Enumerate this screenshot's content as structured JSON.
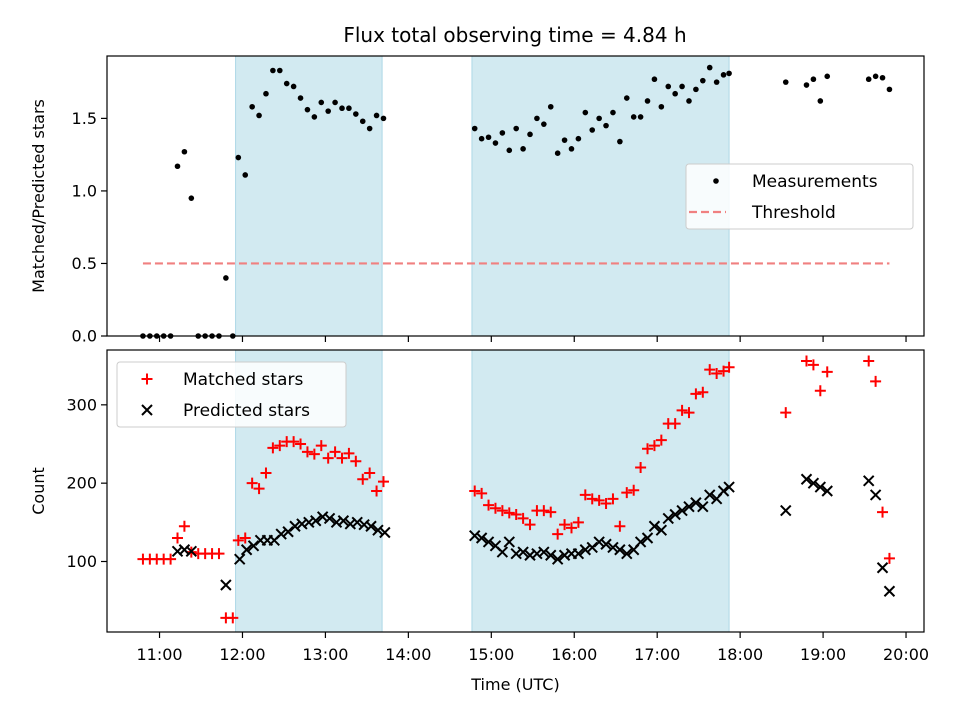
{
  "title": "Flux total observing time = 4.84 h",
  "colors": {
    "measurement": "#000000",
    "threshold": "#f08080",
    "matched": "#ff0000",
    "predicted": "#000000",
    "band": "#add8e6"
  },
  "chart_data": [
    {
      "type": "scatter",
      "panel": "top",
      "ylabel": "Matched/Predicted stars",
      "xlabel": "",
      "xlim": [
        "10:22",
        "20:13"
      ],
      "ylim": [
        0,
        1.93
      ],
      "yticks": [
        0.0,
        0.5,
        1.0,
        1.5
      ],
      "ytick_labels": [
        "0.0",
        "0.5",
        "1.0",
        "1.5"
      ],
      "legend_loc": "center-right",
      "shaded_spans": [
        [
          "11:55",
          "13:41"
        ],
        [
          "14:46",
          "17:52"
        ]
      ],
      "series": [
        {
          "name": "Measurements",
          "marker": "dot",
          "x": [
            "10:48",
            "10:53",
            "10:58",
            "11:03",
            "11:08",
            "11:13",
            "11:18",
            "11:23",
            "11:28",
            "11:33",
            "11:38",
            "11:43",
            "11:48",
            "11:53",
            "11:57",
            "12:02",
            "12:07",
            "12:12",
            "12:17",
            "12:22",
            "12:27",
            "12:32",
            "12:37",
            "12:42",
            "12:47",
            "12:52",
            "12:57",
            "13:02",
            "13:07",
            "13:12",
            "13:17",
            "13:22",
            "13:27",
            "13:32",
            "13:37",
            "13:42",
            "14:48",
            "14:53",
            "14:58",
            "15:03",
            "15:08",
            "15:13",
            "15:18",
            "15:23",
            "15:28",
            "15:33",
            "15:38",
            "15:43",
            "15:48",
            "15:53",
            "15:58",
            "16:03",
            "16:08",
            "16:13",
            "16:18",
            "16:23",
            "16:28",
            "16:33",
            "16:38",
            "16:43",
            "16:48",
            "16:53",
            "16:58",
            "17:03",
            "17:08",
            "17:13",
            "17:18",
            "17:23",
            "17:28",
            "17:33",
            "17:38",
            "17:43",
            "17:48",
            "17:52",
            "18:33",
            "18:48",
            "18:53",
            "18:58",
            "19:03",
            "19:33",
            "19:38",
            "19:43",
            "19:48"
          ],
          "y": [
            0.0,
            0.0,
            0.0,
            0.0,
            0.0,
            1.17,
            1.27,
            0.95,
            0.0,
            0.0,
            0.0,
            0.0,
            0.4,
            0.0,
            1.23,
            1.11,
            1.58,
            1.52,
            1.67,
            1.83,
            1.83,
            1.74,
            1.72,
            1.64,
            1.56,
            1.51,
            1.61,
            1.55,
            1.61,
            1.57,
            1.57,
            1.53,
            1.48,
            1.43,
            1.52,
            1.5,
            1.43,
            1.36,
            1.37,
            1.33,
            1.4,
            1.28,
            1.43,
            1.29,
            1.39,
            1.5,
            1.46,
            1.58,
            1.26,
            1.35,
            1.29,
            1.36,
            1.54,
            1.42,
            1.5,
            1.45,
            1.54,
            1.34,
            1.64,
            1.51,
            1.51,
            1.62,
            1.77,
            1.58,
            1.72,
            1.67,
            1.72,
            1.62,
            1.7,
            1.76,
            1.85,
            1.75,
            1.8,
            1.81,
            1.75,
            1.73,
            1.77,
            1.62,
            1.79,
            1.77,
            1.79,
            1.78,
            1.7
          ]
        },
        {
          "name": "Threshold",
          "style": "dashed-line",
          "x": [
            "10:48",
            "19:48"
          ],
          "y": [
            0.5,
            0.5
          ]
        }
      ]
    },
    {
      "type": "scatter",
      "panel": "bottom",
      "xlabel": "Time (UTC)",
      "ylabel": "Count",
      "xlim": [
        "10:22",
        "20:13"
      ],
      "ylim": [
        10,
        370
      ],
      "yticks": [
        100,
        200,
        300
      ],
      "ytick_labels": [
        "100",
        "200",
        "300"
      ],
      "xticks": [
        "11:00",
        "12:00",
        "13:00",
        "14:00",
        "15:00",
        "16:00",
        "17:00",
        "18:00",
        "19:00",
        "20:00"
      ],
      "xtick_labels": [
        "11:00",
        "12:00",
        "13:00",
        "14:00",
        "15:00",
        "16:00",
        "17:00",
        "18:00",
        "19:00",
        "20:00"
      ],
      "legend_loc": "upper-left",
      "shaded_spans": [
        [
          "11:55",
          "13:41"
        ],
        [
          "14:46",
          "17:52"
        ]
      ],
      "series": [
        {
          "name": "Matched stars",
          "marker": "plus",
          "x": [
            "10:48",
            "10:53",
            "10:58",
            "11:03",
            "11:08",
            "11:13",
            "11:18",
            "11:23",
            "11:28",
            "11:33",
            "11:38",
            "11:43",
            "11:48",
            "11:53",
            "11:57",
            "12:02",
            "12:07",
            "12:12",
            "12:17",
            "12:22",
            "12:27",
            "12:32",
            "12:37",
            "12:42",
            "12:47",
            "12:52",
            "12:57",
            "13:02",
            "13:07",
            "13:12",
            "13:17",
            "13:22",
            "13:27",
            "13:32",
            "13:37",
            "13:42",
            "14:48",
            "14:53",
            "14:58",
            "15:03",
            "15:08",
            "15:13",
            "15:18",
            "15:23",
            "15:28",
            "15:33",
            "15:38",
            "15:43",
            "15:48",
            "15:53",
            "15:58",
            "16:03",
            "16:08",
            "16:13",
            "16:18",
            "16:23",
            "16:28",
            "16:33",
            "16:38",
            "16:43",
            "16:48",
            "16:53",
            "16:58",
            "17:03",
            "17:08",
            "17:13",
            "17:18",
            "17:23",
            "17:28",
            "17:33",
            "17:38",
            "17:43",
            "17:48",
            "17:52",
            "18:33",
            "18:48",
            "18:53",
            "18:58",
            "19:03",
            "19:33",
            "19:38",
            "19:43",
            "19:48"
          ],
          "y": [
            103,
            103,
            103,
            103,
            103,
            130,
            145,
            112,
            110,
            110,
            110,
            110,
            28,
            28,
            127,
            130,
            200,
            193,
            213,
            245,
            248,
            253,
            253,
            250,
            240,
            237,
            248,
            232,
            240,
            232,
            238,
            228,
            205,
            213,
            190,
            202,
            190,
            187,
            172,
            168,
            165,
            162,
            160,
            155,
            147,
            165,
            165,
            163,
            135,
            147,
            143,
            150,
            185,
            180,
            178,
            174,
            180,
            145,
            188,
            191,
            220,
            244,
            248,
            255,
            276,
            276,
            293,
            290,
            314,
            316,
            345,
            340,
            343,
            348,
            290,
            356,
            351,
            318,
            342,
            356,
            330,
            163,
            104
          ]
        },
        {
          "name": "Predicted stars",
          "marker": "x",
          "x": [
            "11:13",
            "11:18",
            "11:23",
            "11:48",
            "11:58",
            "12:03",
            "12:08",
            "12:13",
            "12:18",
            "12:23",
            "12:28",
            "12:33",
            "12:38",
            "12:43",
            "12:48",
            "12:53",
            "12:58",
            "13:03",
            "13:08",
            "13:13",
            "13:18",
            "13:23",
            "13:28",
            "13:33",
            "13:38",
            "13:43",
            "14:48",
            "14:53",
            "14:58",
            "15:03",
            "15:08",
            "15:13",
            "15:18",
            "15:23",
            "15:28",
            "15:33",
            "15:38",
            "15:43",
            "15:48",
            "15:53",
            "15:58",
            "16:03",
            "16:08",
            "16:13",
            "16:18",
            "16:23",
            "16:28",
            "16:33",
            "16:38",
            "16:43",
            "16:48",
            "16:53",
            "16:58",
            "17:03",
            "17:08",
            "17:13",
            "17:18",
            "17:23",
            "17:28",
            "17:33",
            "17:38",
            "17:43",
            "17:48",
            "17:52",
            "18:33",
            "18:48",
            "18:53",
            "18:58",
            "19:03",
            "19:33",
            "19:38",
            "19:43",
            "19:48"
          ],
          "y": [
            113,
            115,
            113,
            70,
            103,
            115,
            120,
            127,
            127,
            127,
            135,
            138,
            145,
            148,
            150,
            152,
            157,
            155,
            150,
            152,
            148,
            150,
            147,
            145,
            140,
            137,
            133,
            130,
            125,
            120,
            112,
            125,
            110,
            112,
            108,
            110,
            112,
            108,
            103,
            108,
            110,
            110,
            115,
            118,
            125,
            122,
            118,
            115,
            110,
            115,
            125,
            130,
            145,
            140,
            155,
            160,
            165,
            170,
            175,
            170,
            185,
            180,
            190,
            195,
            165,
            205,
            200,
            195,
            190,
            203,
            185,
            92,
            62
          ]
        }
      ]
    }
  ]
}
